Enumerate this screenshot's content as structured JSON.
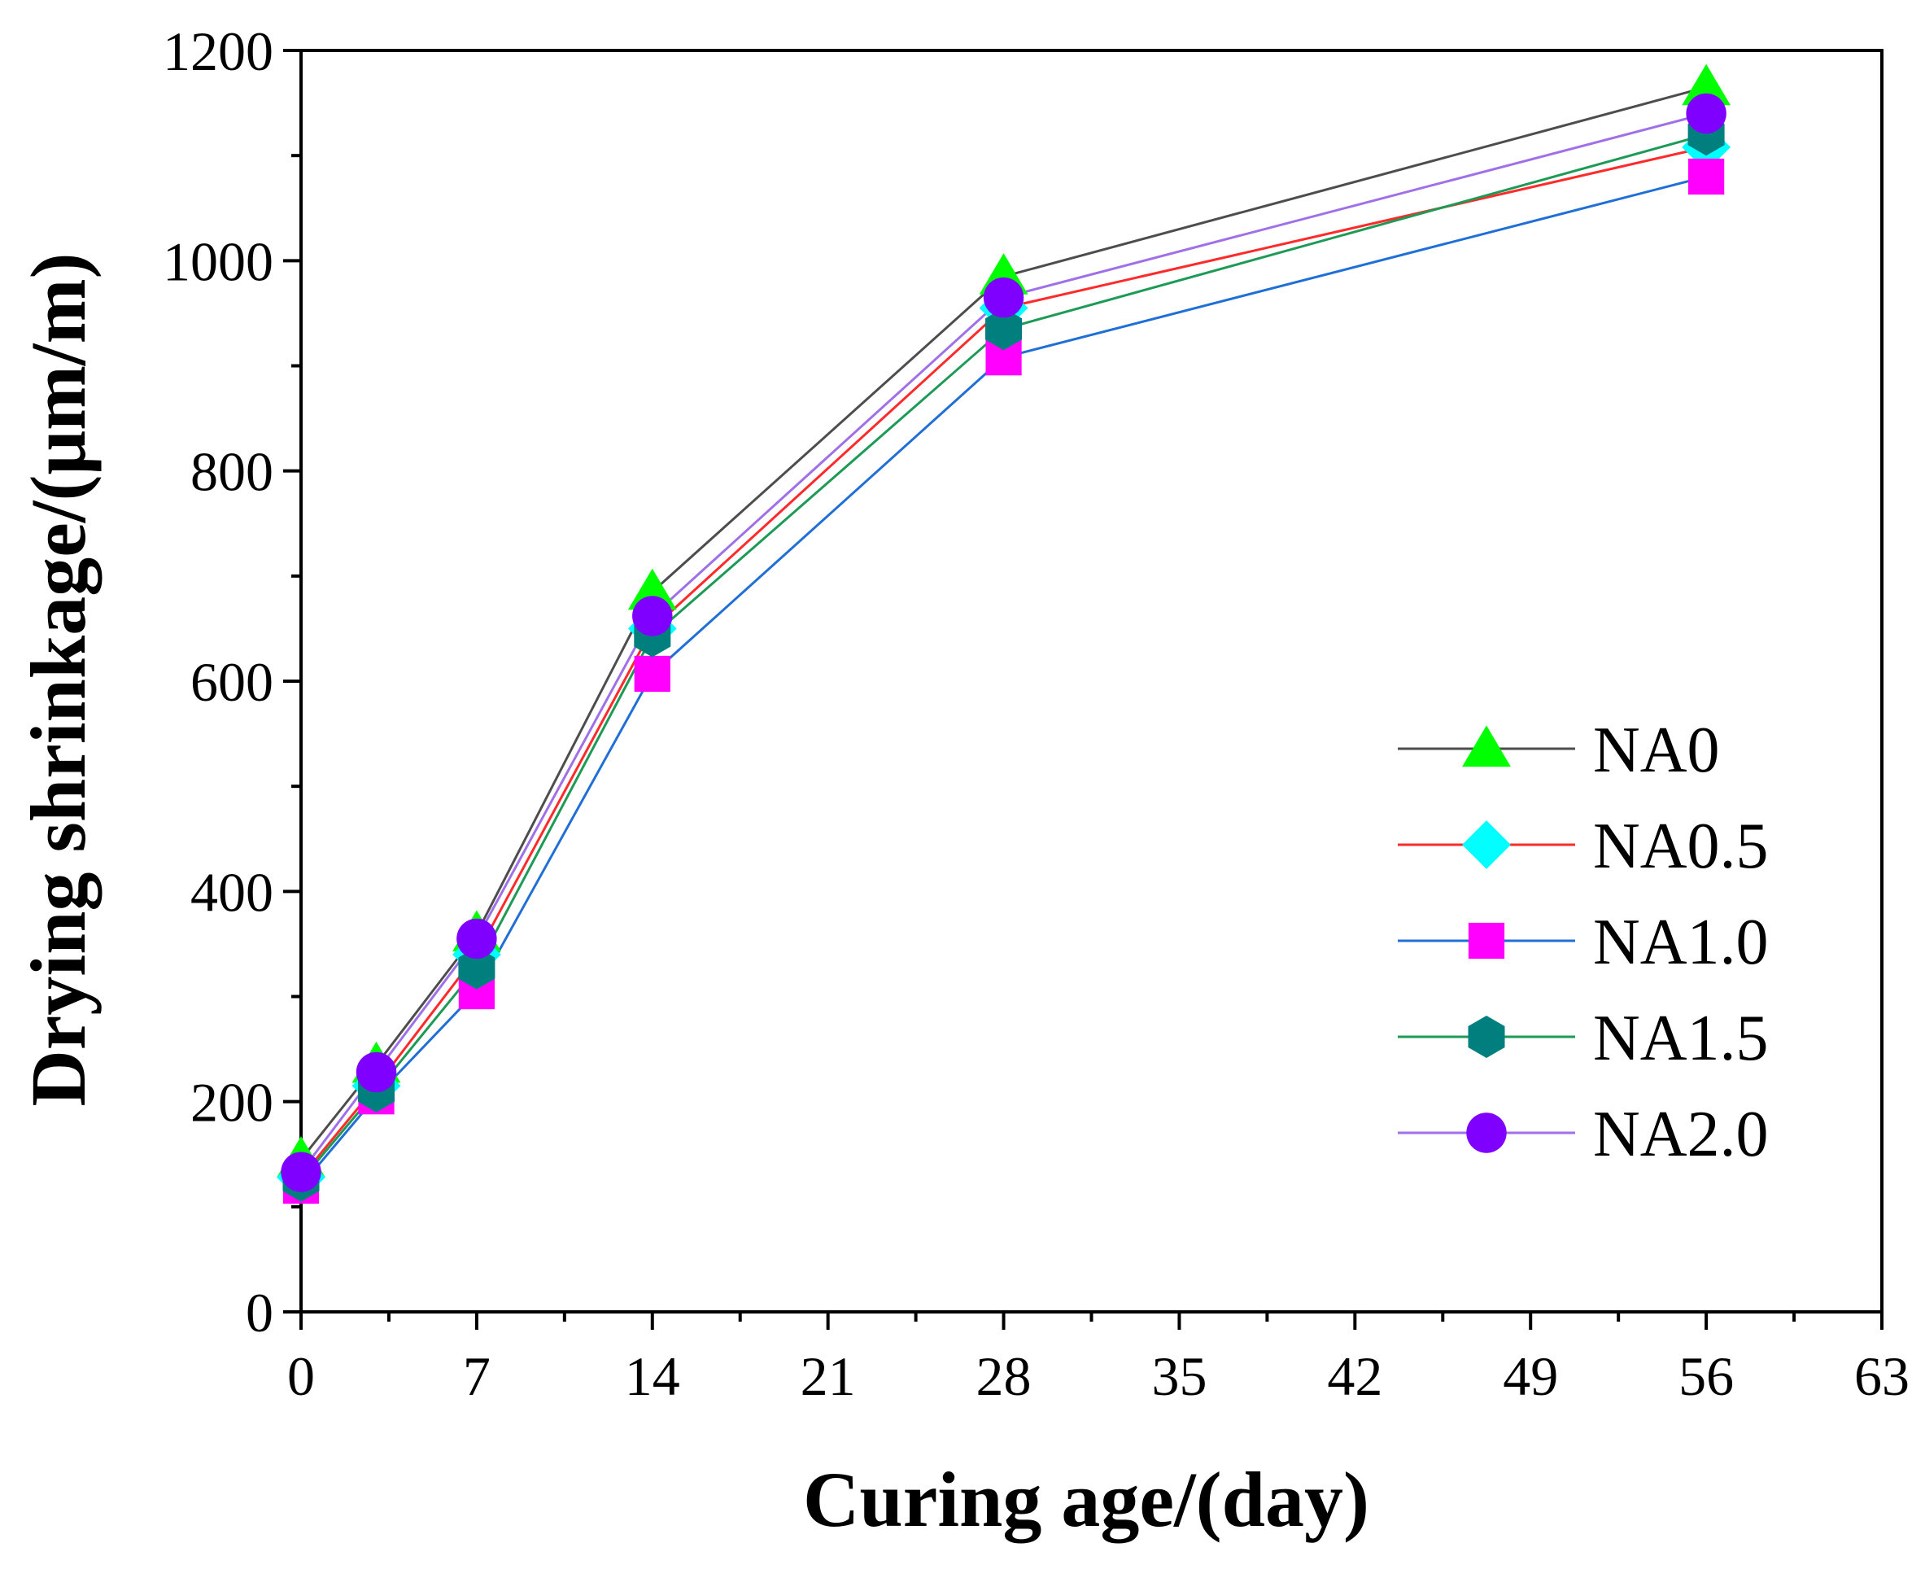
{
  "chart_data": {
    "type": "line",
    "title": "",
    "xlabel": "Curing age/(day)",
    "ylabel": "Drying shrinkage/(μm/m)",
    "xlim": [
      0,
      63
    ],
    "ylim": [
      0,
      1200
    ],
    "x_ticks": [
      0,
      7,
      14,
      21,
      28,
      35,
      42,
      49,
      56,
      63
    ],
    "y_ticks": [
      0,
      200,
      400,
      600,
      800,
      1000,
      1200
    ],
    "x_tick_labels": [
      "0",
      "7",
      "14",
      "21",
      "28",
      "35",
      "42",
      "49",
      "56",
      "63"
    ],
    "y_tick_labels": [
      "0",
      "200",
      "400",
      "600",
      "800",
      "1000",
      "1200"
    ],
    "legend_position": "right",
    "grid": false,
    "x": [
      0,
      3,
      7,
      14,
      28,
      56
    ],
    "series": [
      {
        "name": "NA0",
        "marker": "triangle",
        "line_color": "#4d4d4d",
        "marker_color": "#00ff00",
        "values": [
          145,
          235,
          360,
          685,
          985,
          1165
        ]
      },
      {
        "name": "NA0.5",
        "marker": "diamond",
        "line_color": "#ff2a2a",
        "marker_color": "#00ffff",
        "values": [
          128,
          215,
          340,
          650,
          955,
          1108
        ]
      },
      {
        "name": "NA1.0",
        "marker": "square",
        "line_color": "#1f6fd6",
        "marker_color": "#ff00ff",
        "values": [
          120,
          205,
          305,
          607,
          908,
          1080
        ]
      },
      {
        "name": "NA1.5",
        "marker": "hexagon",
        "line_color": "#1d9a55",
        "marker_color": "#007f7f",
        "values": [
          125,
          210,
          327,
          643,
          935,
          1120
        ]
      },
      {
        "name": "NA2.0",
        "marker": "circle",
        "line_color": "#a070e8",
        "marker_color": "#7f00ff",
        "values": [
          133,
          228,
          355,
          662,
          965,
          1140
        ]
      }
    ]
  }
}
